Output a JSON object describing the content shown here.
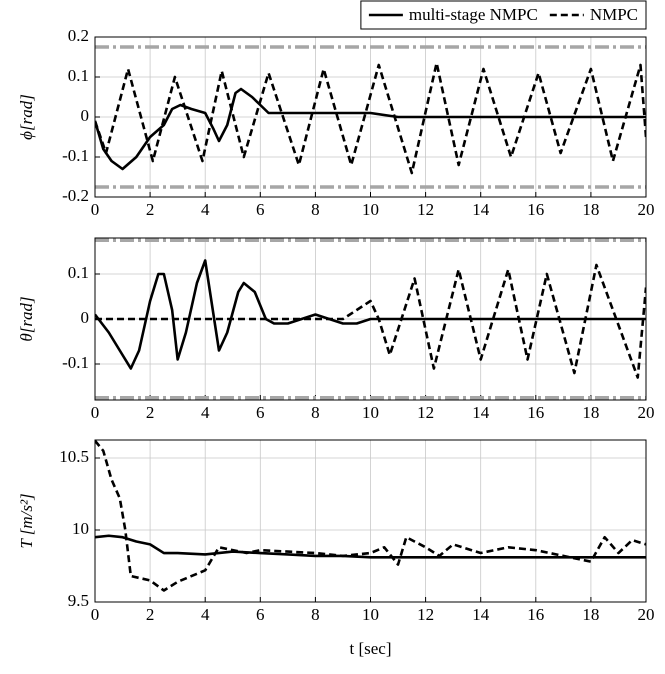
{
  "chart_data": [
    {
      "type": "line",
      "ylabel": "ϕ[rad]",
      "xlim": [
        0,
        20
      ],
      "xticks": [
        0,
        2,
        4,
        6,
        8,
        10,
        12,
        14,
        16,
        18,
        20
      ],
      "ylim": [
        -0.2,
        0.2
      ],
      "yticks": [
        -0.2,
        -0.1,
        0,
        0.1,
        0.2
      ],
      "grid": true,
      "legend": "top-right",
      "bounds": [
        0.175,
        -0.175
      ],
      "bounds_color": "#a6a6a6",
      "series": [
        {
          "name": "multi-stage NMPC",
          "color": "#000000",
          "style": "solid",
          "x": [
            0,
            0.3,
            0.6,
            1,
            1.5,
            2,
            2.5,
            2.8,
            3.1,
            3.5,
            4,
            4.3,
            4.5,
            4.8,
            5.1,
            5.3,
            5.7,
            6,
            6.3,
            7,
            8,
            9,
            10,
            11,
            20
          ],
          "values": [
            -0.01,
            -0.08,
            -0.11,
            -0.13,
            -0.1,
            -0.05,
            -0.02,
            0.02,
            0.03,
            0.02,
            0.01,
            -0.03,
            -0.06,
            -0.02,
            0.06,
            0.07,
            0.05,
            0.03,
            0.01,
            0.01,
            0.01,
            0.01,
            0.01,
            0,
            0
          ]
        },
        {
          "name": "NMPC",
          "color": "#000000",
          "style": "dashed",
          "x": [
            0,
            0.4,
            1.2,
            2.1,
            2.9,
            3.9,
            4.6,
            5.4,
            6.3,
            7.4,
            8.3,
            9.3,
            10.3,
            11.5,
            12.4,
            13.2,
            14.1,
            15.1,
            16.1,
            16.9,
            18,
            18.8,
            19.8,
            20
          ],
          "values": [
            -0.01,
            -0.09,
            0.12,
            -0.11,
            0.1,
            -0.11,
            0.115,
            -0.1,
            0.11,
            -0.12,
            0.12,
            -0.12,
            0.13,
            -0.14,
            0.135,
            -0.12,
            0.12,
            -0.1,
            0.11,
            -0.09,
            0.12,
            -0.11,
            0.13,
            -0.05
          ]
        }
      ]
    },
    {
      "type": "line",
      "ylabel": "θ[rad]",
      "xlim": [
        0,
        20
      ],
      "xticks": [
        0,
        2,
        4,
        6,
        8,
        10,
        12,
        14,
        16,
        18,
        20
      ],
      "ylim": [
        -0.18,
        0.18
      ],
      "yticks": [
        -0.1,
        0,
        0.1
      ],
      "grid": true,
      "bounds": [
        0.175,
        -0.175
      ],
      "bounds_color": "#a6a6a6",
      "series": [
        {
          "color": "#000000",
          "style": "solid",
          "x": [
            0,
            0.5,
            1,
            1.3,
            1.6,
            2,
            2.3,
            2.5,
            2.8,
            3,
            3.3,
            3.7,
            4,
            4.2,
            4.5,
            4.8,
            5.2,
            5.4,
            5.8,
            6.2,
            6.5,
            7,
            7.5,
            8,
            8.5,
            9,
            9.5,
            10,
            20
          ],
          "values": [
            0.01,
            -0.03,
            -0.08,
            -0.11,
            -0.07,
            0.04,
            0.1,
            0.1,
            0.02,
            -0.09,
            -0.03,
            0.08,
            0.13,
            0.05,
            -0.07,
            -0.03,
            0.06,
            0.08,
            0.06,
            0,
            -0.01,
            -0.01,
            0,
            0.01,
            0,
            -0.01,
            -0.01,
            0,
            0
          ]
        },
        {
          "color": "#000000",
          "style": "dashed",
          "x": [
            0,
            9,
            9.5,
            10,
            10.3,
            10.7,
            11.6,
            12.3,
            13.2,
            14,
            15,
            15.7,
            16.4,
            17.4,
            18.2,
            19.7,
            20
          ],
          "values": [
            0,
            0,
            0.02,
            0.04,
            0,
            -0.08,
            0.09,
            -0.11,
            0.11,
            -0.09,
            0.11,
            -0.09,
            0.1,
            -0.12,
            0.12,
            -0.13,
            0.07
          ]
        }
      ]
    },
    {
      "type": "line",
      "ylabel": "T [m/s²]",
      "xlabel": "t [sec]",
      "xlim": [
        0,
        20
      ],
      "xticks": [
        0,
        2,
        4,
        6,
        8,
        10,
        12,
        14,
        16,
        18,
        20
      ],
      "ylim": [
        9.5,
        10.625
      ],
      "yticks": [
        9.5,
        10,
        10.5
      ],
      "grid": true,
      "series": [
        {
          "color": "#000000",
          "style": "solid",
          "x": [
            0,
            0.5,
            1,
            1.5,
            2,
            2.5,
            3,
            4,
            5,
            6,
            7,
            8,
            9,
            10,
            20
          ],
          "values": [
            9.95,
            9.96,
            9.95,
            9.92,
            9.9,
            9.84,
            9.84,
            9.83,
            9.85,
            9.84,
            9.83,
            9.82,
            9.82,
            9.81,
            9.81
          ]
        },
        {
          "color": "#000000",
          "style": "dashed",
          "x": [
            0,
            0.3,
            0.6,
            0.9,
            1.1,
            1.3,
            2,
            2.5,
            3,
            3.5,
            4,
            4.5,
            5,
            5.5,
            6,
            7,
            8,
            9,
            10,
            10.5,
            11,
            11.3,
            12,
            12.5,
            13,
            14,
            15,
            16,
            17,
            18,
            18.5,
            19,
            19.5,
            20
          ],
          "values": [
            10.62,
            10.55,
            10.35,
            10.22,
            10,
            9.68,
            9.65,
            9.58,
            9.64,
            9.68,
            9.72,
            9.88,
            9.86,
            9.84,
            9.86,
            9.85,
            9.84,
            9.82,
            9.84,
            9.88,
            9.76,
            9.95,
            9.88,
            9.82,
            9.9,
            9.84,
            9.88,
            9.86,
            9.82,
            9.78,
            9.95,
            9.84,
            9.93,
            9.9
          ]
        }
      ]
    }
  ]
}
